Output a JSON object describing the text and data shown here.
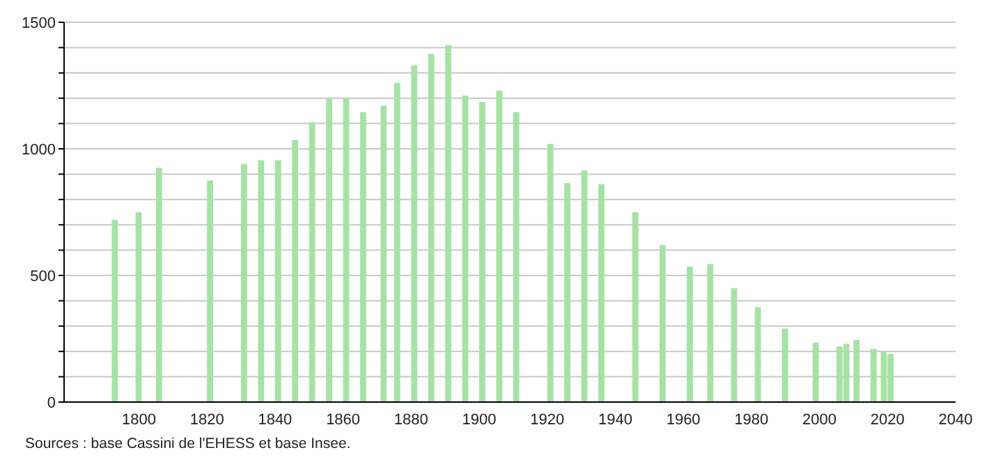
{
  "chart_data": {
    "type": "bar",
    "x": [
      1793,
      1800,
      1806,
      1821,
      1831,
      1836,
      1841,
      1846,
      1851,
      1856,
      1861,
      1866,
      1872,
      1876,
      1881,
      1886,
      1891,
      1896,
      1901,
      1906,
      1911,
      1921,
      1926,
      1931,
      1936,
      1946,
      1954,
      1962,
      1968,
      1975,
      1982,
      1990,
      1999,
      2006,
      2008,
      2011,
      2016,
      2019,
      2021
    ],
    "values": [
      720,
      750,
      925,
      875,
      940,
      955,
      955,
      1035,
      1105,
      1200,
      1200,
      1145,
      1170,
      1260,
      1330,
      1375,
      1410,
      1210,
      1185,
      1230,
      1145,
      1020,
      865,
      915,
      860,
      750,
      620,
      535,
      545,
      450,
      375,
      290,
      235,
      220,
      230,
      245,
      210,
      200,
      190
    ],
    "color": "#a6e2a6",
    "xlim": [
      1778,
      2040
    ],
    "xticks": [
      1800,
      1820,
      1840,
      1860,
      1880,
      1900,
      1920,
      1940,
      1960,
      1980,
      2000,
      2020,
      2040
    ],
    "ylim": [
      0,
      1500
    ],
    "yticks": [
      0,
      {
        "value": 100,
        "label": null
      },
      {
        "value": 200,
        "label": null
      },
      {
        "value": 300,
        "label": null
      },
      {
        "value": 400,
        "label": null
      },
      500,
      {
        "value": 600,
        "label": null
      },
      {
        "value": 700,
        "label": null
      },
      {
        "value": 800,
        "label": null
      },
      {
        "value": 900,
        "label": null
      },
      1000,
      {
        "value": 1100,
        "label": null
      },
      {
        "value": 1200,
        "label": null
      },
      {
        "value": 1300,
        "label": null
      },
      {
        "value": 1400,
        "label": null
      },
      1500
    ],
    "grid": "y",
    "annotations": [
      "Sources : base Cassini de l'EHESS et base Insee."
    ]
  }
}
